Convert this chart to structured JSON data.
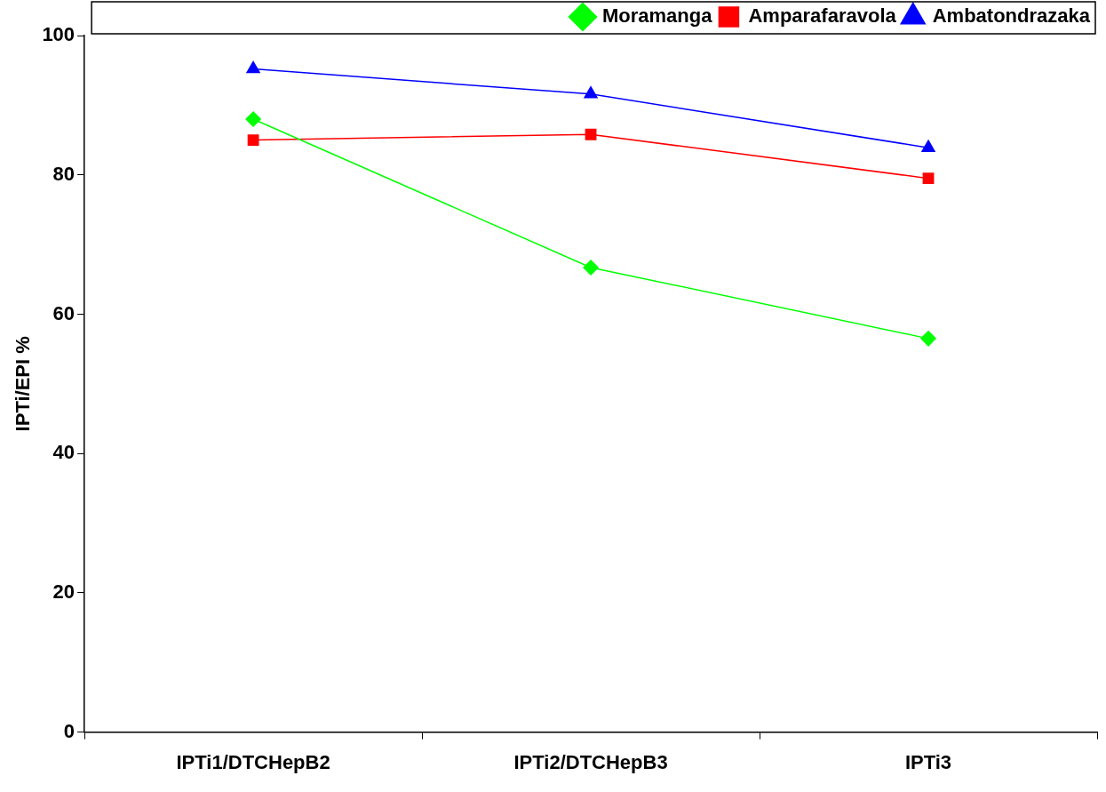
{
  "chart_data": {
    "type": "line",
    "ylabel": "IPTi/EPI %",
    "categories": [
      "IPTi1/DTCHepB2",
      "IPTi2/DTCHepB3",
      "IPTi3"
    ],
    "series": [
      {
        "name": "Moramanga",
        "color": "#00ff00",
        "marker": "diamond",
        "values": [
          88,
          66.7,
          56.5
        ]
      },
      {
        "name": "Amparafaravola",
        "color": "#ff0000",
        "marker": "square",
        "values": [
          85,
          85.8,
          79.5
        ]
      },
      {
        "name": "Ambatondrazaka",
        "color": "#0000ff",
        "marker": "triangle",
        "values": [
          95.2,
          91.6,
          83.9
        ]
      }
    ],
    "ylim": [
      0,
      100
    ],
    "yticks": [
      0,
      20,
      40,
      60,
      80,
      100
    ],
    "grid": false,
    "legend": "top right",
    "line_style": "solid"
  }
}
